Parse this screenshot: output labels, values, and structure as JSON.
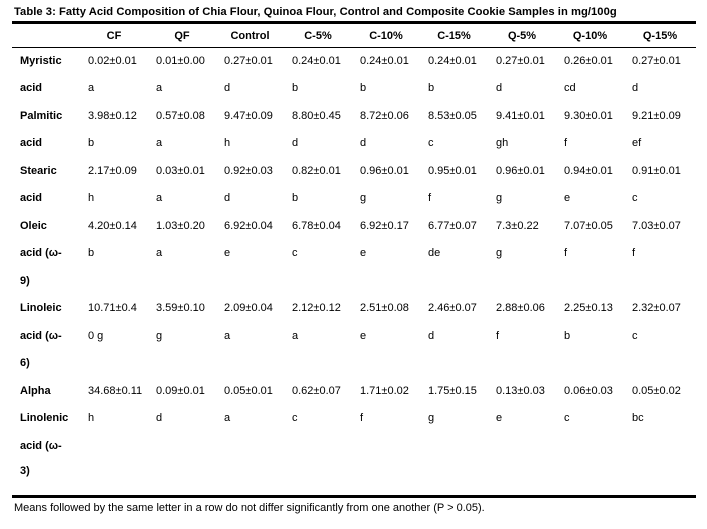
{
  "title": "Table 3: Fatty Acid Composition of Chia Flour, Quinoa Flour, Control and Composite Cookie Samples in mg/100g",
  "columns": [
    "",
    "CF",
    "QF",
    "Control",
    "C-5%",
    "C-10%",
    "C-15%",
    "Q-5%",
    "Q-10%",
    "Q-15%"
  ],
  "rows": [
    [
      "Myristic",
      "0.02±0.01",
      "0.01±0.00",
      "0.27±0.01",
      "0.24±0.01",
      "0.24±0.01",
      "0.24±0.01",
      "0.27±0.01",
      "0.26±0.01",
      "0.27±0.01"
    ],
    [
      "acid",
      "a",
      "a",
      "d",
      "b",
      "b",
      "b",
      "d",
      "cd",
      "d"
    ],
    [
      "Palmitic",
      "3.98±0.12",
      "0.57±0.08",
      "9.47±0.09",
      "8.80±0.45",
      "8.72±0.06",
      "8.53±0.05",
      "9.41±0.01",
      "9.30±0.01",
      "9.21±0.09"
    ],
    [
      "acid",
      "b",
      "a",
      "h",
      "d",
      "d",
      "c",
      "gh",
      "f",
      "ef"
    ],
    [
      "Stearic",
      "2.17±0.09",
      "0.03±0.01",
      "0.92±0.03",
      "0.82±0.01",
      "0.96±0.01",
      "0.95±0.01",
      "0.96±0.01",
      "0.94±0.01",
      "0.91±0.01"
    ],
    [
      "acid",
      "h",
      "a",
      "d",
      "b",
      "g",
      "f",
      "g",
      "e",
      "c"
    ],
    [
      "Oleic",
      "4.20±0.14",
      "1.03±0.20",
      "6.92±0.04",
      "6.78±0.04",
      "6.92±0.17",
      "6.77±0.07",
      "7.3±0.22",
      "7.07±0.05",
      "7.03±0.07"
    ],
    [
      "acid   (ω-",
      "b",
      "a",
      "e",
      "c",
      "e",
      "de",
      "g",
      "f",
      "f"
    ],
    [
      "9)",
      "",
      "",
      "",
      "",
      "",
      "",
      "",
      "",
      ""
    ],
    [
      "Linoleic",
      "10.71±0.4",
      "3.59±0.10",
      "2.09±0.04",
      "2.12±0.12",
      "2.51±0.08",
      "2.46±0.07",
      "2.88±0.06",
      "2.25±0.13",
      "2.32±0.07"
    ],
    [
      "acid   (ω-",
      "0 g",
      "g",
      "a",
      "a",
      "e",
      "d",
      "f",
      "b",
      "c"
    ],
    [
      "6)",
      "",
      "",
      "",
      "",
      "",
      "",
      "",
      "",
      ""
    ],
    [
      "Alpha",
      "34.68±0.11",
      "0.09±0.01",
      "0.05±0.01",
      "0.62±0.07",
      "1.71±0.02",
      "1.75±0.15",
      "0.13±0.03",
      "0.06±0.03",
      "0.05±0.02"
    ],
    [
      "Linolenic",
      "h",
      "d",
      "a",
      "c",
      "f",
      "g",
      "e",
      "c",
      "bc"
    ],
    [
      "acid   (ω-",
      "",
      "",
      "",
      "",
      "",
      "",
      "",
      "",
      ""
    ],
    [
      "3)",
      "",
      "",
      "",
      "",
      "",
      "",
      "",
      "",
      ""
    ]
  ],
  "note": "Means followed by the same letter in a row do not differ significantly from one another (P > 0.05)."
}
